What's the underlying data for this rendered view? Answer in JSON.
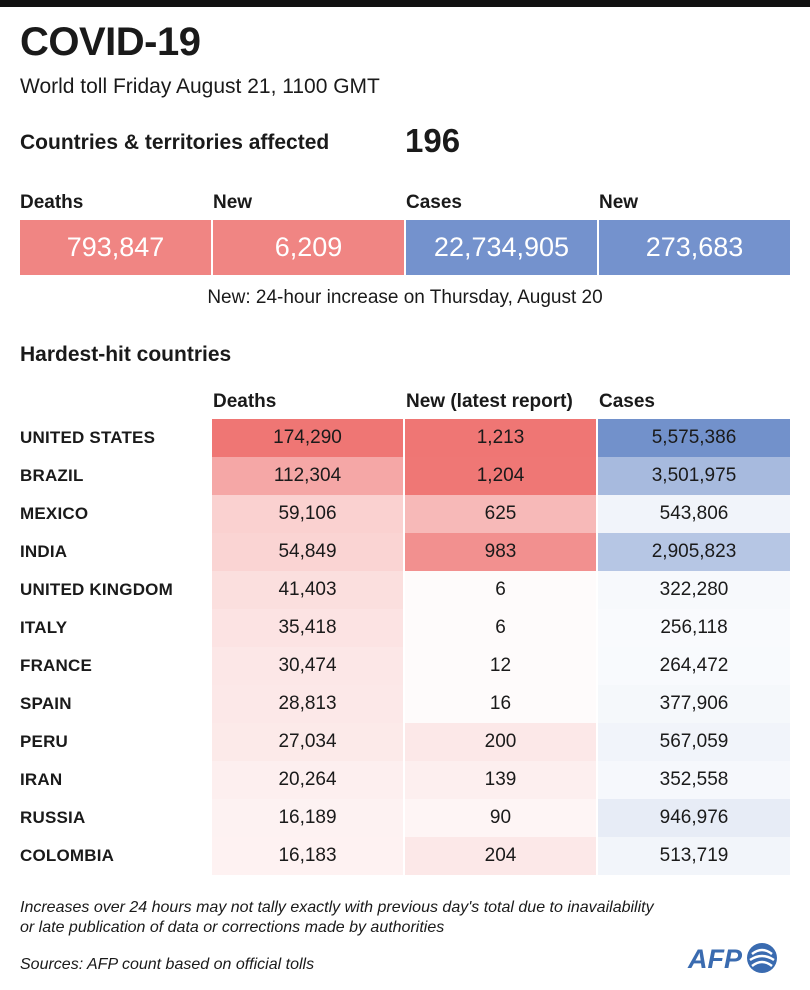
{
  "header": {
    "title": "COVID-19",
    "subtitle": "World toll Friday August 21, 1100 GMT",
    "affected_label": "Countries & territories affected",
    "affected_value": "196"
  },
  "summary": {
    "labels": [
      "Deaths",
      "New",
      "Cases",
      "New"
    ],
    "values": [
      "793,847",
      "6,209",
      "22,734,905",
      "273,683"
    ],
    "note": "New: 24-hour increase on Thursday, August 20"
  },
  "table": {
    "title": "Hardest-hit countries",
    "headers": [
      "Deaths",
      "New (latest report)",
      "Cases"
    ],
    "rows": [
      {
        "country": "UNITED STATES",
        "deaths": "174,290",
        "new": "1,213",
        "cases": "5,575,386"
      },
      {
        "country": "BRAZIL",
        "deaths": "112,304",
        "new": "1,204",
        "cases": "3,501,975"
      },
      {
        "country": "MEXICO",
        "deaths": "59,106",
        "new": "625",
        "cases": "543,806"
      },
      {
        "country": "INDIA",
        "deaths": "54,849",
        "new": "983",
        "cases": "2,905,823"
      },
      {
        "country": "UNITED KINGDOM",
        "deaths": "41,403",
        "new": "6",
        "cases": "322,280"
      },
      {
        "country": "ITALY",
        "deaths": "35,418",
        "new": "6",
        "cases": "256,118"
      },
      {
        "country": "FRANCE",
        "deaths": "30,474",
        "new": "12",
        "cases": "264,472"
      },
      {
        "country": "SPAIN",
        "deaths": "28,813",
        "new": "16",
        "cases": "377,906"
      },
      {
        "country": "PERU",
        "deaths": "27,034",
        "new": "200",
        "cases": "567,059"
      },
      {
        "country": "IRAN",
        "deaths": "20,264",
        "new": "139",
        "cases": "352,558"
      },
      {
        "country": "RUSSIA",
        "deaths": "16,189",
        "new": "90",
        "cases": "946,976"
      },
      {
        "country": "COLOMBIA",
        "deaths": "16,183",
        "new": "204",
        "cases": "513,719"
      }
    ]
  },
  "colors": {
    "red_base": "#ee6f6d",
    "blue_base": "#6b8bc8",
    "summary_red": "#f08583",
    "summary_blue": "#7492cd"
  },
  "footer": {
    "footnote_line1": "Increases over 24 hours may not tally exactly with previous day's total due to inavailability",
    "footnote_line2": "or late publication of data or corrections made by authorities",
    "sources": "Sources: AFP count based on official tolls",
    "logo_text": "AFP"
  }
}
